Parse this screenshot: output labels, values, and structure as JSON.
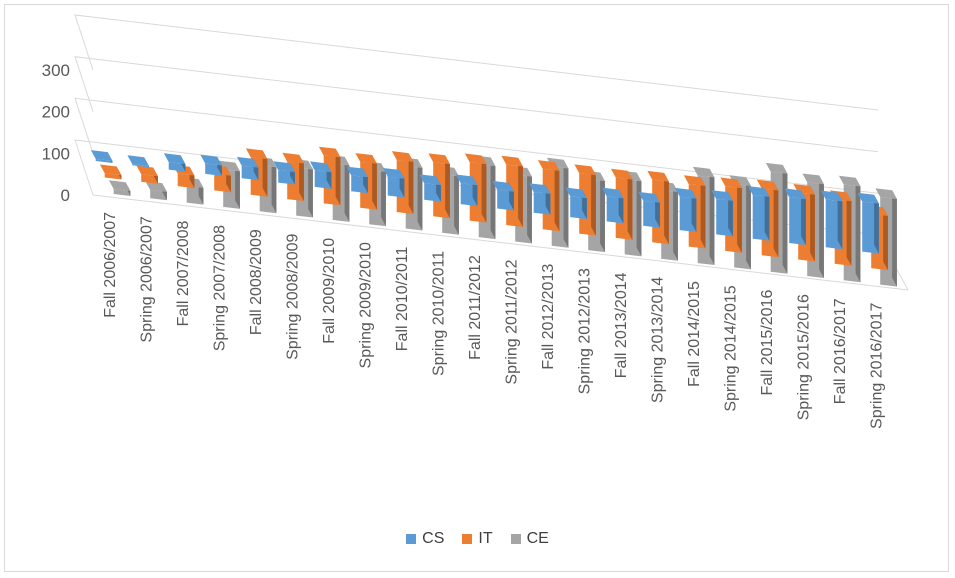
{
  "chart_data": {
    "type": "bar",
    "title": "",
    "xlabel": "",
    "ylabel": "",
    "ylim": [
      0,
      300
    ],
    "yticks": [
      0,
      100,
      200,
      300
    ],
    "grid": true,
    "legend_position": "bottom",
    "categories": [
      "Fall 2006/2007",
      "Spring 2006/2007",
      "Fall 2007/2008",
      "Spring 2007/2008",
      "Fall 2008/2009",
      "Spring 2008/2009",
      "Fall 2009/2010",
      "Spring 2009/2010",
      "Fall 2010/2011",
      "Spring 2010/2011",
      "Fall 2011/2012",
      "Spring 2011/2012",
      "Fall 2012/2013",
      "Spring 2012/2013",
      "Fall 2013/2014",
      "Spring 2013/2014",
      "Fall 2014/2015",
      "Spring 2014/2015",
      "Fall 2015/2016",
      "Spring 2015/2016",
      "Fall 2016/2017",
      "Spring 2016/2017"
    ],
    "series": [
      {
        "name": "CS",
        "color": "#5B9BD5",
        "values": [
          5,
          3,
          18,
          25,
          30,
          30,
          40,
          38,
          45,
          40,
          50,
          45,
          50,
          50,
          60,
          60,
          80,
          85,
          105,
          110,
          115,
          120
        ]
      },
      {
        "name": "IT",
        "color": "#ED7D31",
        "values": [
          10,
          18,
          30,
          40,
          90,
          90,
          115,
          110,
          125,
          130,
          140,
          145,
          145,
          145,
          145,
          150,
          150,
          155,
          160,
          160,
          155,
          130
        ]
      },
      {
        "name": "CE",
        "color": "#A5A5A5",
        "values": [
          12,
          20,
          40,
          90,
          110,
          115,
          135,
          130,
          150,
          140,
          175,
          160,
          190,
          170,
          180,
          165,
          210,
          200,
          240,
          225,
          230,
          210
        ]
      }
    ]
  }
}
